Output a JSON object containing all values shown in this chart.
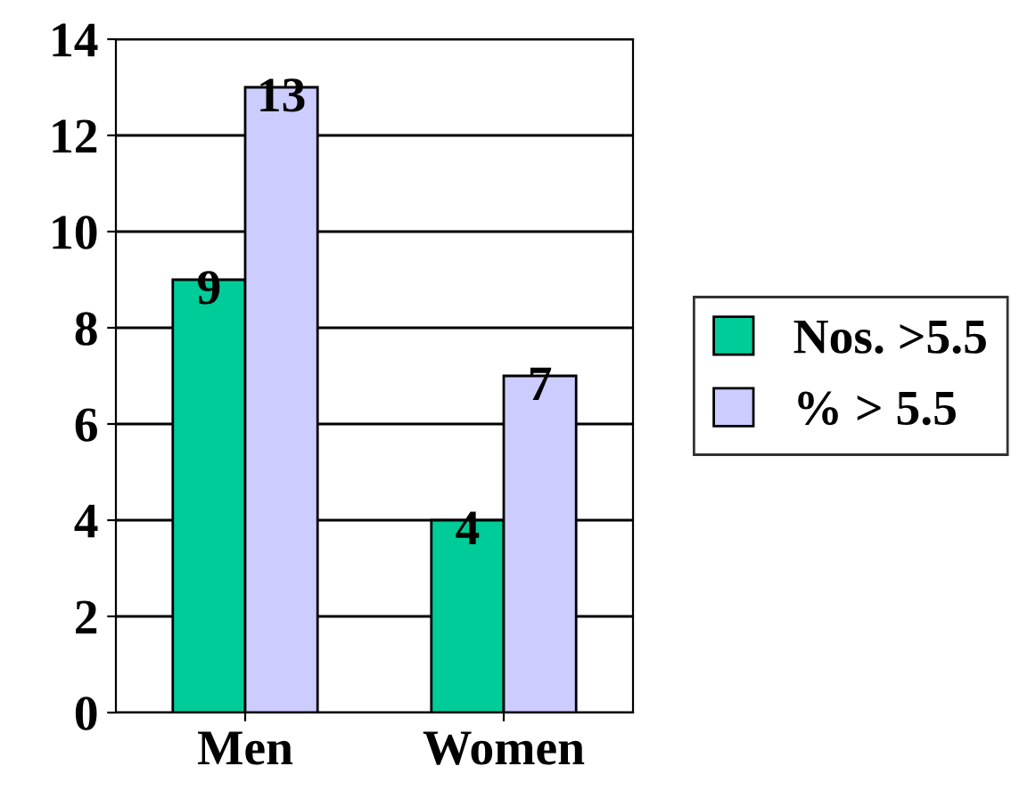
{
  "chart_data": {
    "type": "bar",
    "categories": [
      "Men",
      "Women"
    ],
    "series": [
      {
        "name": "Nos. >5.5",
        "color": "#00cc99",
        "values": [
          9,
          4
        ]
      },
      {
        "name": "% > 5.5",
        "color": "#ccccff",
        "values": [
          13,
          7
        ]
      }
    ],
    "ylim": [
      0,
      14
    ],
    "yticks": [
      0,
      2,
      4,
      6,
      8,
      10,
      12,
      14
    ],
    "grid": "y",
    "legend": "right",
    "data_labels": true
  }
}
